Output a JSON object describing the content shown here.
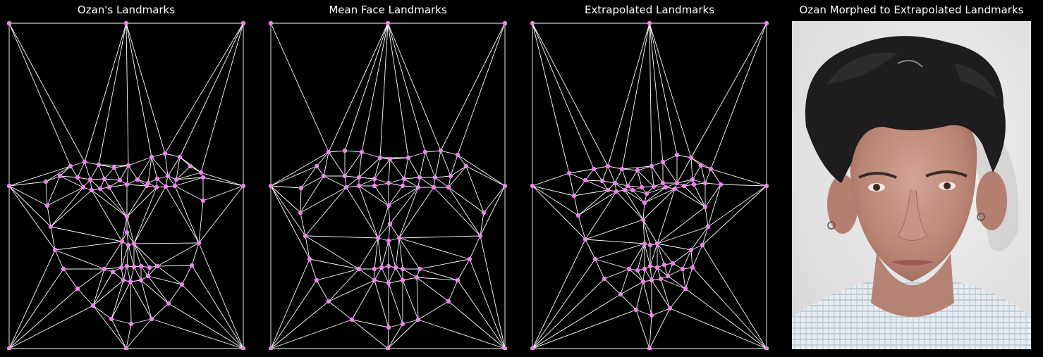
{
  "panels": [
    {
      "title": "Ozan's Landmarks"
    },
    {
      "title": "Mean Face Landmarks"
    },
    {
      "title": "Extrapolated Landmarks"
    },
    {
      "title": "Ozan Morphed to Extrapolated Landmarks"
    }
  ],
  "colors": {
    "background": "#000000",
    "mesh_line": "#ffffff",
    "landmark_point": "#ee82ee",
    "title_text": "#ffffff"
  }
}
